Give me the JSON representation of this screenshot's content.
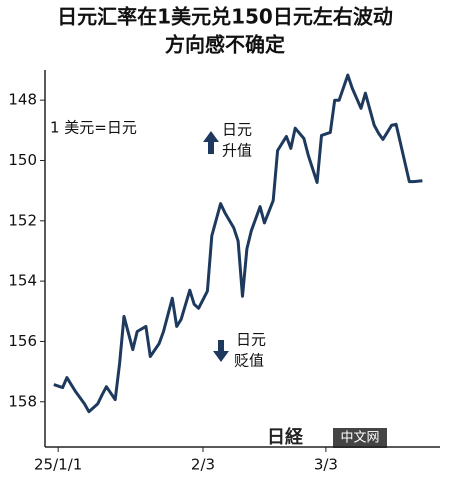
{
  "chart_data": {
    "type": "line",
    "title_lines": [
      "日元汇率在1美元兑150日元左右波动",
      "方向感不确定"
    ],
    "unit_label": "1 美元=日元",
    "annotations": [
      {
        "lines": [
          "日元",
          "升值"
        ],
        "arrow": "up"
      },
      {
        "lines": [
          "日元",
          "贬值"
        ],
        "arrow": "down"
      }
    ],
    "watermark": [
      "日経",
      "中文网"
    ],
    "x": [
      "2024-12-31",
      "2025-01-02",
      "2025-01-03",
      "2025-01-05",
      "2025-01-07",
      "2025-01-08",
      "2025-01-10",
      "2025-01-11",
      "2025-01-12",
      "2025-01-14",
      "2025-01-15",
      "2025-01-16",
      "2025-01-18",
      "2025-01-19",
      "2025-01-21",
      "2025-01-22",
      "2025-01-24",
      "2025-01-25",
      "2025-01-27",
      "2025-01-28",
      "2025-01-29",
      "2025-01-31",
      "2025-02-01",
      "2025-02-02",
      "2025-02-04",
      "2025-02-05",
      "2025-02-07",
      "2025-02-08",
      "2025-02-10",
      "2025-02-11",
      "2025-02-12",
      "2025-02-13",
      "2025-02-14",
      "2025-02-16",
      "2025-02-17",
      "2025-02-19",
      "2025-02-20",
      "2025-02-22",
      "2025-02-23",
      "2025-02-24",
      "2025-02-26",
      "2025-02-27",
      "2025-03-01",
      "2025-03-02",
      "2025-03-04",
      "2025-03-05",
      "2025-03-06",
      "2025-03-08",
      "2025-03-09",
      "2025-03-11",
      "2025-03-12",
      "2025-03-14",
      "2025-03-15",
      "2025-03-16",
      "2025-03-18",
      "2025-03-19",
      "2025-03-20",
      "2025-03-22",
      "2025-03-23",
      "2025-03-25"
    ],
    "series": [
      {
        "color": "#1d3a5e",
        "values": [
          157.43,
          157.53,
          157.2,
          157.67,
          158.07,
          158.33,
          158.07,
          157.77,
          157.5,
          157.93,
          156.73,
          155.17,
          156.27,
          155.67,
          155.5,
          156.5,
          156.07,
          155.67,
          154.57,
          155.5,
          155.27,
          154.3,
          154.77,
          154.9,
          154.33,
          152.5,
          151.43,
          151.73,
          152.23,
          152.67,
          154.5,
          152.93,
          152.33,
          151.53,
          152.07,
          151.33,
          149.67,
          149.2,
          149.6,
          148.93,
          149.27,
          149.83,
          150.73,
          149.17,
          149.07,
          148,
          148,
          147.17,
          147.6,
          148.27,
          147.77,
          148.83,
          149.1,
          149.3,
          148.83,
          148.8,
          149.43,
          150.7,
          150.7,
          150.67
        ]
      }
    ],
    "xlim": [
      "2024-12-29",
      "2025-03-29"
    ],
    "xticks": [
      {
        "value": "2025-01-01",
        "label": "25/1/1"
      },
      {
        "value": "2025-02-03",
        "label": "2/3"
      },
      {
        "value": "2025-03-03",
        "label": "3/3"
      }
    ],
    "ylim": [
      159.5,
      147
    ],
    "yticks": [
      148,
      150,
      152,
      154,
      156,
      158
    ]
  }
}
